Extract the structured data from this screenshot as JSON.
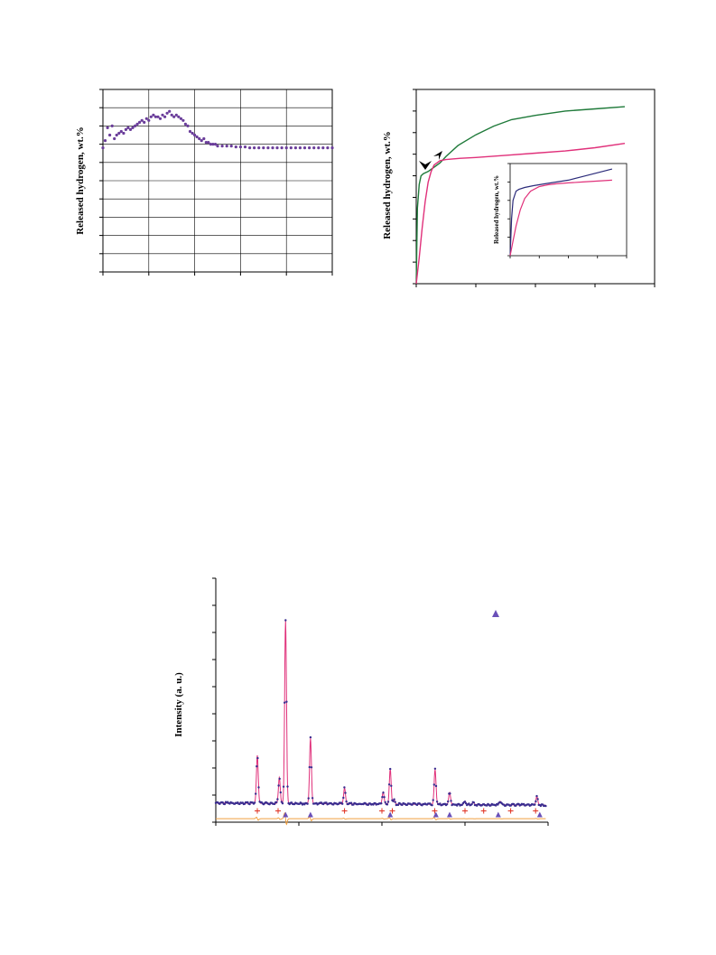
{
  "chart_data": [
    {
      "type": "scatter",
      "ylabel": "Released hydrogen, wt.%",
      "xlabel": "",
      "title": "",
      "grid": true,
      "xlim": [
        0,
        5
      ],
      "ylim": [
        0,
        10
      ],
      "color": "#6a3d9a",
      "series": [
        {
          "x": [
            0.0,
            0.05,
            0.1,
            0.15,
            0.2,
            0.25,
            0.3,
            0.35,
            0.4,
            0.45,
            0.5,
            0.55,
            0.6,
            0.65,
            0.7,
            0.75,
            0.8,
            0.85,
            0.9,
            0.95,
            1.0,
            1.05,
            1.1,
            1.15,
            1.2,
            1.25,
            1.3,
            1.35,
            1.4,
            1.45,
            1.5,
            1.55,
            1.6,
            1.65,
            1.7,
            1.75,
            1.8,
            1.85,
            1.9,
            1.95,
            2.0,
            2.05,
            2.1,
            2.15,
            2.2,
            2.25,
            2.3,
            2.35,
            2.4,
            2.45,
            2.5,
            2.6,
            2.7,
            2.8,
            2.9,
            3.0,
            3.1,
            3.2,
            3.3,
            3.4,
            3.5,
            3.6,
            3.7,
            3.8,
            3.9,
            4.0,
            4.1,
            4.2,
            4.3,
            4.4,
            4.5,
            4.6,
            4.7,
            4.8,
            4.9,
            5.0
          ],
          "y": [
            6.8,
            7.2,
            7.9,
            7.5,
            8.0,
            7.3,
            7.5,
            7.6,
            7.7,
            7.6,
            7.8,
            7.9,
            7.8,
            7.9,
            8.0,
            8.1,
            8.2,
            8.3,
            8.2,
            8.4,
            8.3,
            8.5,
            8.6,
            8.5,
            8.5,
            8.4,
            8.6,
            8.5,
            8.7,
            8.8,
            8.6,
            8.5,
            8.6,
            8.5,
            8.4,
            8.3,
            8.1,
            8.0,
            7.7,
            7.6,
            7.5,
            7.4,
            7.3,
            7.2,
            7.3,
            7.1,
            7.1,
            7.0,
            7.0,
            7.0,
            6.9,
            6.9,
            6.9,
            6.9,
            6.85,
            6.85,
            6.85,
            6.8,
            6.8,
            6.8,
            6.8,
            6.8,
            6.8,
            6.8,
            6.8,
            6.8,
            6.8,
            6.8,
            6.8,
            6.8,
            6.8,
            6.8,
            6.8,
            6.8,
            6.8,
            6.8
          ]
        }
      ]
    },
    {
      "type": "line",
      "ylabel": "Released hydrogen, wt.%",
      "xlabel": "",
      "title": "",
      "grid": false,
      "xlim": [
        0,
        4
      ],
      "ylim": [
        0,
        9
      ],
      "series": [
        {
          "color": "#1f7a3a",
          "x": [
            0,
            0.02,
            0.05,
            0.08,
            0.12,
            0.2,
            0.3,
            0.4,
            0.5,
            0.7,
            1.0,
            1.3,
            1.6,
            2.0,
            2.5,
            3.0,
            3.5
          ],
          "y": [
            0,
            3.5,
            4.6,
            5.0,
            5.1,
            5.2,
            5.4,
            5.6,
            5.9,
            6.4,
            6.9,
            7.3,
            7.6,
            7.8,
            8.0,
            8.1,
            8.2
          ]
        },
        {
          "color": "#e0307a",
          "x": [
            0,
            0.05,
            0.1,
            0.15,
            0.2,
            0.25,
            0.3,
            0.4,
            0.5,
            0.7,
            1.0,
            1.5,
            2.0,
            2.5,
            3.0,
            3.5
          ],
          "y": [
            0,
            1.2,
            2.6,
            3.8,
            4.7,
            5.2,
            5.5,
            5.7,
            5.75,
            5.8,
            5.85,
            5.95,
            6.05,
            6.15,
            6.3,
            6.5
          ]
        }
      ],
      "annotations": [
        "arrow",
        "arrow"
      ],
      "inset": {
        "ylabel": "Released hydrogen, wt.%",
        "xlim": [
          0,
          4
        ],
        "ylim": [
          0,
          5
        ],
        "series": [
          {
            "color": "#2b2b7a",
            "x": [
              0,
              0.05,
              0.1,
              0.2,
              0.3,
              0.5,
              0.8,
              1.2,
              1.6,
              2.0,
              2.5,
              3.0,
              3.5
            ],
            "y": [
              0,
              2.0,
              3.0,
              3.5,
              3.6,
              3.7,
              3.8,
              3.9,
              4.0,
              4.1,
              4.3,
              4.5,
              4.7
            ]
          },
          {
            "color": "#e0307a",
            "x": [
              0,
              0.1,
              0.2,
              0.35,
              0.5,
              0.7,
              1.0,
              1.3,
              1.6,
              2.0,
              2.5,
              3.0,
              3.5
            ],
            "y": [
              0,
              0.8,
              1.6,
              2.5,
              3.1,
              3.5,
              3.75,
              3.85,
              3.9,
              3.95,
              4.0,
              4.05,
              4.1
            ]
          }
        ]
      }
    },
    {
      "type": "line",
      "ylabel": "Intensity (a. u.)",
      "xlabel": "",
      "title": "",
      "grid": false,
      "xlim": [
        10,
        90
      ],
      "ylim": [
        -10,
        270
      ],
      "baseline": 12,
      "peaks": [
        {
          "x": 20.0,
          "h": 55
        },
        {
          "x": 25.3,
          "h": 30
        },
        {
          "x": 26.8,
          "h": 210
        },
        {
          "x": 32.8,
          "h": 75
        },
        {
          "x": 41.0,
          "h": 18
        },
        {
          "x": 50.3,
          "h": 14
        },
        {
          "x": 52.0,
          "h": 40
        },
        {
          "x": 52.9,
          "h": 5
        },
        {
          "x": 62.8,
          "h": 40
        },
        {
          "x": 66.3,
          "h": 14
        },
        {
          "x": 70.0,
          "h": 4
        },
        {
          "x": 72.0,
          "h": 3
        },
        {
          "x": 78.5,
          "h": 4
        },
        {
          "x": 87.3,
          "h": 10
        }
      ],
      "tick_marks": {
        "plus": [
          20.0,
          25.0,
          41.0,
          50.0,
          52.5,
          62.7,
          70.0,
          74.5,
          81.0,
          87.0
        ],
        "triangle": [
          26.8,
          32.8,
          52.0,
          63.0,
          66.3,
          78.0,
          88.0
        ]
      },
      "legend_marker": "triangle",
      "colors": {
        "observed": "#3a2d8f",
        "calculated": "#e0307a",
        "difference": "#f0a040",
        "plus": "#e03020",
        "triangle": "#6a50b8"
      }
    }
  ]
}
